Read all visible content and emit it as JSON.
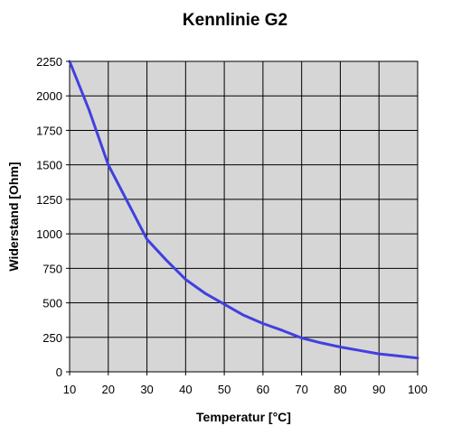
{
  "chart_data": {
    "type": "line",
    "title": "Kennlinie G2",
    "xlabel": "Temperatur [°C]",
    "ylabel": "Widerstand [Ohm]",
    "xlim": [
      10,
      100
    ],
    "ylim": [
      0,
      2250
    ],
    "x_ticks": [
      10,
      20,
      30,
      40,
      50,
      60,
      70,
      80,
      90,
      100
    ],
    "y_ticks": [
      0,
      250,
      500,
      750,
      1000,
      1250,
      1500,
      1750,
      2000,
      2250
    ],
    "grid": true,
    "series": [
      {
        "color": "#4040e0",
        "x": [
          10,
          15,
          20,
          25,
          30,
          35,
          40,
          45,
          50,
          55,
          60,
          65,
          70,
          75,
          80,
          85,
          90,
          95,
          100
        ],
        "y": [
          2250,
          1900,
          1500,
          1230,
          960,
          810,
          670,
          570,
          490,
          410,
          350,
          300,
          245,
          210,
          180,
          155,
          130,
          115,
          100
        ]
      }
    ]
  },
  "colors": {
    "plot_background": "#d6d6d6",
    "series": "#4040e0"
  }
}
